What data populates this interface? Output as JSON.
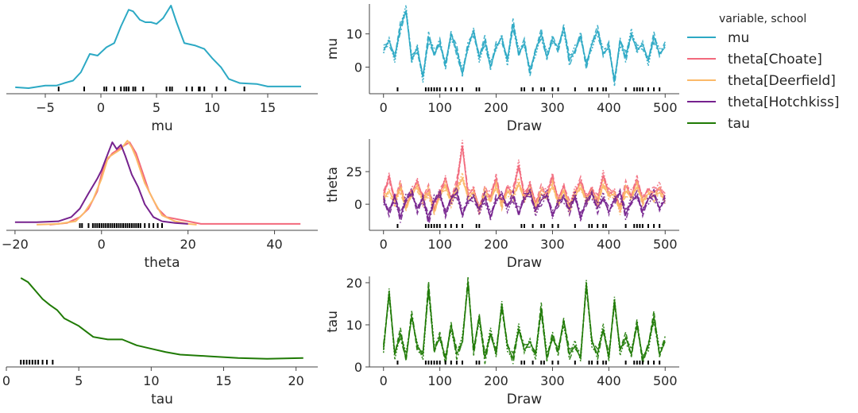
{
  "chart_data": {
    "type": "line",
    "colors": {
      "mu": "#2ca9c4",
      "theta[Choate]": "#f2697c",
      "theta[Deerfield]": "#fbb968",
      "theta[Hotchkiss]": "#76228e",
      "tau": "#1f7a05"
    },
    "legend": {
      "title": "variable, school",
      "placement": "right",
      "entries": [
        "mu",
        "theta[Choate]",
        "theta[Deerfield]",
        "theta[Hotchkiss]",
        "tau"
      ]
    },
    "kde_panels": [
      {
        "xlabel": "mu",
        "xlim": [
          -8.5,
          19.5
        ],
        "xticks": [
          -5,
          0,
          5,
          10,
          15
        ],
        "tick_labels": [
          "−5",
          "0",
          "5",
          "10",
          "15"
        ],
        "series": [
          {
            "key": "mu",
            "points": [
              [
                -7.7,
                0.02
              ],
              [
                -6.5,
                0.01
              ],
              [
                -5,
                0.04
              ],
              [
                -4,
                0.04
              ],
              [
                -3.3,
                0.07
              ],
              [
                -2.5,
                0.1
              ],
              [
                -1.8,
                0.2
              ],
              [
                -1,
                0.42
              ],
              [
                -0.3,
                0.4
              ],
              [
                0.5,
                0.5
              ],
              [
                1.2,
                0.55
              ],
              [
                1.8,
                0.75
              ],
              [
                2.5,
                0.95
              ],
              [
                2.9,
                0.93
              ],
              [
                3.5,
                0.83
              ],
              [
                4,
                0.8
              ],
              [
                4.5,
                0.8
              ],
              [
                5,
                0.78
              ],
              [
                5.6,
                0.85
              ],
              [
                6.3,
                1.0
              ],
              [
                6.8,
                0.8
              ],
              [
                7.5,
                0.55
              ],
              [
                8.5,
                0.52
              ],
              [
                9.3,
                0.48
              ],
              [
                10,
                0.37
              ],
              [
                10.8,
                0.26
              ],
              [
                11.5,
                0.12
              ],
              [
                12.5,
                0.07
              ],
              [
                14,
                0.06
              ],
              [
                15,
                0.03
              ],
              [
                18,
                0.03
              ]
            ]
          }
        ],
        "rug": [
          -3.8,
          -1.5,
          0.3,
          0.5,
          1.2,
          1.8,
          2.1,
          2.3,
          2.5,
          2.9,
          3.1,
          3.8,
          5.9,
          6.2,
          6.4,
          7.7,
          8.2,
          8.8,
          8.9,
          9.3,
          10.4,
          11.2,
          12.9
        ]
      },
      {
        "xlabel": "theta",
        "xlim": [
          -22,
          50
        ],
        "xticks": [
          -20,
          0,
          20,
          40
        ],
        "tick_labels": [
          "−20",
          "0",
          "20",
          "40"
        ],
        "series": [
          {
            "key": "theta[Choate]",
            "points": [
              [
                -12,
                0.01
              ],
              [
                -8,
                0.03
              ],
              [
                -5,
                0.1
              ],
              [
                -3,
                0.2
              ],
              [
                -1,
                0.4
              ],
              [
                0,
                0.6
              ],
              [
                1,
                0.75
              ],
              [
                2.5,
                0.85
              ],
              [
                4,
                0.9
              ],
              [
                5.5,
                0.95
              ],
              [
                6.5,
                0.98
              ],
              [
                8,
                0.85
              ],
              [
                9,
                0.7
              ],
              [
                11,
                0.4
              ],
              [
                13,
                0.2
              ],
              [
                15,
                0.1
              ],
              [
                18,
                0.07
              ],
              [
                20,
                0.05
              ],
              [
                23,
                0.02
              ],
              [
                30,
                0.02
              ],
              [
                40,
                0.02
              ],
              [
                46,
                0.02
              ]
            ]
          },
          {
            "key": "theta[Deerfield]",
            "points": [
              [
                -15,
                0.01
              ],
              [
                -10,
                0.02
              ],
              [
                -6,
                0.05
              ],
              [
                -4,
                0.15
              ],
              [
                -2,
                0.3
              ],
              [
                0,
                0.55
              ],
              [
                1.5,
                0.8
              ],
              [
                3,
                0.85
              ],
              [
                4.5,
                0.9
              ],
              [
                6,
                1.0
              ],
              [
                7,
                0.92
              ],
              [
                8,
                0.8
              ],
              [
                10,
                0.5
              ],
              [
                12,
                0.3
              ],
              [
                14,
                0.12
              ],
              [
                17,
                0.05
              ],
              [
                20,
                0.02
              ],
              [
                22,
                0.01
              ]
            ]
          },
          {
            "key": "theta[Hotchkiss]",
            "points": [
              [
                -20,
                0.04
              ],
              [
                -15,
                0.04
              ],
              [
                -10,
                0.05
              ],
              [
                -7,
                0.1
              ],
              [
                -5,
                0.2
              ],
              [
                -3,
                0.38
              ],
              [
                -1,
                0.55
              ],
              [
                0,
                0.65
              ],
              [
                1.5,
                0.85
              ],
              [
                2.5,
                0.98
              ],
              [
                3.5,
                0.9
              ],
              [
                4.5,
                0.95
              ],
              [
                5.5,
                0.82
              ],
              [
                7,
                0.6
              ],
              [
                8.5,
                0.45
              ],
              [
                10,
                0.25
              ],
              [
                12,
                0.1
              ],
              [
                14,
                0.05
              ],
              [
                17,
                0.03
              ],
              [
                20,
                0.02
              ]
            ]
          }
        ],
        "rug": [
          -5,
          -4.5,
          -3,
          -2,
          -1.5,
          -1,
          -0.5,
          0,
          0.5,
          1,
          1.5,
          2,
          2.5,
          3,
          3.5,
          4,
          4.5,
          5,
          5.5,
          6,
          6.5,
          7,
          7.5,
          8,
          8.5,
          9,
          10,
          11,
          12,
          13,
          14
        ]
      },
      {
        "xlabel": "tau",
        "xlim": [
          0,
          21.5
        ],
        "xticks": [
          0,
          5,
          10,
          15,
          20
        ],
        "tick_labels": [
          "0",
          "5",
          "10",
          "15",
          "20"
        ],
        "series": [
          {
            "key": "tau",
            "points": [
              [
                1,
                1.0
              ],
              [
                1.5,
                0.95
              ],
              [
                2,
                0.85
              ],
              [
                2.5,
                0.75
              ],
              [
                3,
                0.68
              ],
              [
                3.5,
                0.62
              ],
              [
                4,
                0.52
              ],
              [
                5,
                0.43
              ],
              [
                6,
                0.3
              ],
              [
                7,
                0.27
              ],
              [
                8,
                0.27
              ],
              [
                9,
                0.2
              ],
              [
                10,
                0.16
              ],
              [
                11,
                0.12
              ],
              [
                12,
                0.09
              ],
              [
                14,
                0.07
              ],
              [
                16,
                0.05
              ],
              [
                18,
                0.04
              ],
              [
                20.5,
                0.05
              ]
            ]
          }
        ],
        "rug": [
          1,
          1.2,
          1.4,
          1.6,
          1.8,
          2,
          2.2,
          2.5,
          2.8,
          3.2
        ]
      }
    ],
    "trace_panels": [
      {
        "ylabel": "mu",
        "xlabel": "Draw",
        "ylim": [
          -8,
          19
        ],
        "yticks": [
          0,
          10
        ],
        "tick_labels": [
          "0",
          "10"
        ],
        "series": [
          {
            "key": "mu",
            "values": [
              5,
              8,
              3,
              12,
              17,
              2,
              6,
              -3,
              9,
              4,
              7,
              1,
              10,
              5,
              -2,
              6,
              11,
              3,
              8,
              0,
              6,
              9,
              2,
              13,
              4,
              7,
              -1,
              5,
              10,
              3,
              8,
              6,
              12,
              2,
              5,
              9,
              1,
              7,
              11,
              4,
              6,
              -4,
              8,
              3,
              10,
              5,
              7,
              2,
              9,
              4,
              6
            ]
          }
        ]
      },
      {
        "ylabel": "theta",
        "xlabel": "Draw",
        "ylim": [
          -20,
          50
        ],
        "yticks": [
          0,
          25
        ],
        "tick_labels": [
          "0",
          "25"
        ],
        "series": [
          {
            "key": "theta[Choate]",
            "values": [
              6,
              22,
              3,
              14,
              -2,
              9,
              18,
              5,
              11,
              -4,
              8,
              20,
              4,
              15,
              45,
              7,
              12,
              -3,
              10,
              6,
              19,
              2,
              13,
              9,
              30,
              5,
              16,
              1,
              11,
              8,
              20,
              4,
              14,
              -1,
              9,
              17,
              6,
              12,
              3,
              22,
              8,
              10,
              -2,
              14,
              7,
              18,
              5,
              11,
              9,
              13,
              4
            ]
          },
          {
            "key": "theta[Deerfield]",
            "values": [
              4,
              10,
              2,
              12,
              -3,
              7,
              14,
              3,
              9,
              -6,
              6,
              15,
              2,
              11,
              20,
              5,
              9,
              -4,
              8,
              3,
              13,
              0,
              10,
              6,
              16,
              3,
              12,
              -2,
              8,
              5,
              14,
              2,
              10,
              -3,
              7,
              12,
              4,
              9,
              1,
              15,
              6,
              8,
              -4,
              10,
              5,
              13,
              3,
              8,
              6,
              9,
              2
            ]
          },
          {
            "key": "theta[Hotchkiss]",
            "values": [
              2,
              -5,
              6,
              -10,
              4,
              8,
              -3,
              5,
              -12,
              3,
              7,
              -6,
              4,
              9,
              -8,
              2,
              6,
              -4,
              5,
              -10,
              3,
              8,
              -2,
              6,
              -7,
              4,
              10,
              -5,
              3,
              7,
              -9,
              2,
              5,
              -4,
              6,
              -11,
              3,
              8,
              -3,
              5,
              -6,
              4,
              9,
              -8,
              2,
              6,
              -5,
              4,
              7,
              -3,
              3
            ]
          }
        ]
      },
      {
        "ylabel": "tau",
        "xlabel": "Draw",
        "ylim": [
          0,
          21.5
        ],
        "xticks": [
          0,
          100,
          200,
          300,
          400,
          500
        ],
        "yticks": [
          0,
          10,
          20
        ],
        "tick_labels": [
          "0",
          "10",
          "20"
        ],
        "series": [
          {
            "key": "tau",
            "values": [
              4,
              18,
              3,
              8,
              2,
              12,
              5,
              3,
              19,
              4,
              7,
              2,
              10,
              3,
              6,
              20,
              4,
              12,
              2,
              8,
              3,
              15,
              5,
              2,
              9,
              4,
              6,
              3,
              14,
              2,
              7,
              4,
              11,
              3,
              5,
              2,
              20,
              6,
              3,
              9,
              2,
              16,
              4,
              7,
              3,
              10,
              2,
              5,
              12,
              3,
              6
            ]
          }
        ]
      }
    ],
    "trace_xlim": [
      -25,
      525
    ],
    "trace_xticks": [
      0,
      100,
      200,
      300,
      400,
      500
    ],
    "trace_rug": [
      25,
      75,
      80,
      85,
      90,
      95,
      100,
      110,
      120,
      130,
      140,
      165,
      170,
      245,
      250,
      265,
      280,
      285,
      300,
      310,
      340,
      365,
      370,
      380,
      390,
      395,
      430,
      445,
      450,
      455,
      460,
      470,
      480,
      490
    ]
  }
}
